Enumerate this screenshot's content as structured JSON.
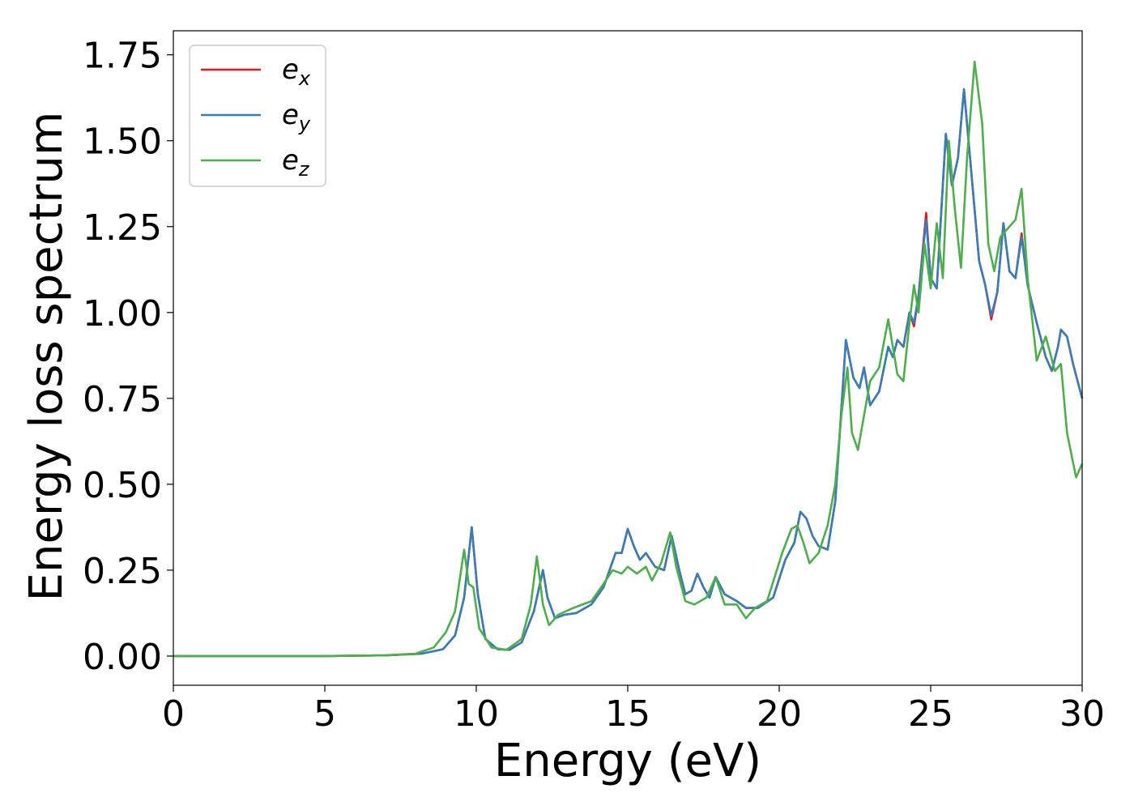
{
  "chart_data": {
    "type": "line",
    "title": "",
    "xlabel": "Energy (eV)",
    "ylabel": "Energy loss spectrum",
    "xlim": [
      0,
      30
    ],
    "ylim": [
      -0.085,
      1.82
    ],
    "xticks": [
      0,
      5,
      10,
      15,
      20,
      25,
      30
    ],
    "xtick_labels": [
      "0",
      "5",
      "10",
      "15",
      "20",
      "25",
      "30"
    ],
    "yticks": [
      0,
      0.25,
      0.5,
      0.75,
      1.0,
      1.25,
      1.5,
      1.75
    ],
    "ytick_labels": [
      "0.00",
      "0.25",
      "0.50",
      "0.75",
      "1.00",
      "1.25",
      "1.50",
      "1.75"
    ],
    "grid": false,
    "legend_position": "top-left",
    "series": [
      {
        "name": "e_x",
        "label_base": "e",
        "label_sub": "x",
        "color": "#e41a1c",
        "points": [
          [
            0,
            0
          ],
          [
            5,
            0
          ],
          [
            7,
            0.002
          ],
          [
            8.2,
            0.007
          ],
          [
            8.9,
            0.02
          ],
          [
            9.3,
            0.06
          ],
          [
            9.6,
            0.17
          ],
          [
            9.85,
            0.375
          ],
          [
            10.05,
            0.18
          ],
          [
            10.3,
            0.05
          ],
          [
            10.7,
            0.02
          ],
          [
            11.1,
            0.018
          ],
          [
            11.5,
            0.04
          ],
          [
            11.9,
            0.13
          ],
          [
            12.2,
            0.25
          ],
          [
            12.35,
            0.17
          ],
          [
            12.6,
            0.11
          ],
          [
            12.9,
            0.12
          ],
          [
            13.3,
            0.125
          ],
          [
            13.8,
            0.15
          ],
          [
            14.2,
            0.2
          ],
          [
            14.6,
            0.3
          ],
          [
            14.8,
            0.3
          ],
          [
            15.0,
            0.37
          ],
          [
            15.2,
            0.32
          ],
          [
            15.4,
            0.28
          ],
          [
            15.6,
            0.3
          ],
          [
            15.9,
            0.26
          ],
          [
            16.2,
            0.25
          ],
          [
            16.45,
            0.35
          ],
          [
            16.7,
            0.25
          ],
          [
            16.9,
            0.18
          ],
          [
            17.1,
            0.19
          ],
          [
            17.3,
            0.24
          ],
          [
            17.5,
            0.2
          ],
          [
            17.7,
            0.17
          ],
          [
            17.9,
            0.23
          ],
          [
            18.2,
            0.18
          ],
          [
            18.6,
            0.16
          ],
          [
            18.9,
            0.14
          ],
          [
            19.3,
            0.14
          ],
          [
            19.8,
            0.17
          ],
          [
            20.2,
            0.28
          ],
          [
            20.5,
            0.33
          ],
          [
            20.7,
            0.42
          ],
          [
            20.9,
            0.4
          ],
          [
            21.1,
            0.35
          ],
          [
            21.3,
            0.32
          ],
          [
            21.6,
            0.31
          ],
          [
            21.85,
            0.45
          ],
          [
            22.0,
            0.65
          ],
          [
            22.2,
            0.92
          ],
          [
            22.45,
            0.81
          ],
          [
            22.65,
            0.78
          ],
          [
            22.8,
            0.84
          ],
          [
            23.0,
            0.73
          ],
          [
            23.3,
            0.77
          ],
          [
            23.6,
            0.9
          ],
          [
            23.75,
            0.87
          ],
          [
            23.9,
            0.92
          ],
          [
            24.1,
            0.9
          ],
          [
            24.3,
            1.0
          ],
          [
            24.45,
            0.96
          ],
          [
            24.6,
            1.05
          ],
          [
            24.85,
            1.29
          ],
          [
            25.0,
            1.1
          ],
          [
            25.2,
            1.07
          ],
          [
            25.5,
            1.52
          ],
          [
            25.7,
            1.37
          ],
          [
            25.9,
            1.45
          ],
          [
            26.1,
            1.65
          ],
          [
            26.3,
            1.45
          ],
          [
            26.6,
            1.15
          ],
          [
            26.8,
            1.08
          ],
          [
            27.0,
            0.98
          ],
          [
            27.2,
            1.06
          ],
          [
            27.4,
            1.26
          ],
          [
            27.6,
            1.12
          ],
          [
            27.8,
            1.1
          ],
          [
            28.0,
            1.23
          ],
          [
            28.2,
            1.08
          ],
          [
            28.5,
            0.97
          ],
          [
            28.8,
            0.87
          ],
          [
            29.0,
            0.83
          ],
          [
            29.2,
            0.9
          ],
          [
            29.3,
            0.95
          ],
          [
            29.5,
            0.93
          ],
          [
            29.7,
            0.85
          ],
          [
            30.0,
            0.75
          ]
        ]
      },
      {
        "name": "e_y",
        "label_base": "e",
        "label_sub": "y",
        "color": "#377eb8",
        "points": [
          [
            0,
            0
          ],
          [
            5,
            0
          ],
          [
            7,
            0.002
          ],
          [
            8.2,
            0.007
          ],
          [
            8.9,
            0.02
          ],
          [
            9.3,
            0.06
          ],
          [
            9.6,
            0.17
          ],
          [
            9.85,
            0.375
          ],
          [
            10.05,
            0.18
          ],
          [
            10.3,
            0.05
          ],
          [
            10.7,
            0.02
          ],
          [
            11.1,
            0.018
          ],
          [
            11.5,
            0.04
          ],
          [
            11.9,
            0.13
          ],
          [
            12.2,
            0.25
          ],
          [
            12.35,
            0.17
          ],
          [
            12.6,
            0.11
          ],
          [
            12.9,
            0.12
          ],
          [
            13.3,
            0.125
          ],
          [
            13.8,
            0.15
          ],
          [
            14.2,
            0.2
          ],
          [
            14.6,
            0.3
          ],
          [
            14.8,
            0.3
          ],
          [
            15.0,
            0.37
          ],
          [
            15.2,
            0.32
          ],
          [
            15.4,
            0.28
          ],
          [
            15.6,
            0.3
          ],
          [
            15.9,
            0.26
          ],
          [
            16.2,
            0.25
          ],
          [
            16.45,
            0.35
          ],
          [
            16.7,
            0.25
          ],
          [
            16.9,
            0.18
          ],
          [
            17.1,
            0.19
          ],
          [
            17.3,
            0.24
          ],
          [
            17.5,
            0.2
          ],
          [
            17.7,
            0.17
          ],
          [
            17.9,
            0.23
          ],
          [
            18.2,
            0.18
          ],
          [
            18.6,
            0.16
          ],
          [
            18.9,
            0.14
          ],
          [
            19.3,
            0.14
          ],
          [
            19.8,
            0.17
          ],
          [
            20.2,
            0.28
          ],
          [
            20.5,
            0.33
          ],
          [
            20.7,
            0.42
          ],
          [
            20.9,
            0.4
          ],
          [
            21.1,
            0.35
          ],
          [
            21.3,
            0.32
          ],
          [
            21.6,
            0.31
          ],
          [
            21.85,
            0.45
          ],
          [
            22.0,
            0.65
          ],
          [
            22.2,
            0.92
          ],
          [
            22.45,
            0.81
          ],
          [
            22.65,
            0.78
          ],
          [
            22.8,
            0.84
          ],
          [
            23.0,
            0.73
          ],
          [
            23.3,
            0.77
          ],
          [
            23.6,
            0.9
          ],
          [
            23.75,
            0.87
          ],
          [
            23.9,
            0.92
          ],
          [
            24.1,
            0.9
          ],
          [
            24.3,
            1.0
          ],
          [
            24.45,
            0.97
          ],
          [
            24.6,
            1.05
          ],
          [
            24.85,
            1.27
          ],
          [
            25.0,
            1.1
          ],
          [
            25.2,
            1.07
          ],
          [
            25.5,
            1.52
          ],
          [
            25.7,
            1.37
          ],
          [
            25.9,
            1.45
          ],
          [
            26.1,
            1.65
          ],
          [
            26.3,
            1.45
          ],
          [
            26.6,
            1.15
          ],
          [
            26.8,
            1.08
          ],
          [
            27.0,
            0.99
          ],
          [
            27.2,
            1.06
          ],
          [
            27.4,
            1.26
          ],
          [
            27.6,
            1.12
          ],
          [
            27.8,
            1.1
          ],
          [
            28.0,
            1.22
          ],
          [
            28.2,
            1.08
          ],
          [
            28.5,
            0.97
          ],
          [
            28.8,
            0.87
          ],
          [
            29.0,
            0.83
          ],
          [
            29.2,
            0.9
          ],
          [
            29.3,
            0.95
          ],
          [
            29.5,
            0.93
          ],
          [
            29.7,
            0.85
          ],
          [
            30.0,
            0.75
          ]
        ]
      },
      {
        "name": "e_z",
        "label_base": "e",
        "label_sub": "z",
        "color": "#4daf4a",
        "points": [
          [
            0,
            0
          ],
          [
            5,
            0
          ],
          [
            7,
            0.002
          ],
          [
            8.0,
            0.007
          ],
          [
            8.6,
            0.025
          ],
          [
            9.0,
            0.07
          ],
          [
            9.3,
            0.13
          ],
          [
            9.6,
            0.31
          ],
          [
            9.75,
            0.21
          ],
          [
            9.9,
            0.2
          ],
          [
            10.1,
            0.08
          ],
          [
            10.5,
            0.025
          ],
          [
            11.0,
            0.018
          ],
          [
            11.5,
            0.05
          ],
          [
            11.8,
            0.15
          ],
          [
            12.0,
            0.29
          ],
          [
            12.2,
            0.15
          ],
          [
            12.4,
            0.09
          ],
          [
            12.7,
            0.12
          ],
          [
            13.2,
            0.14
          ],
          [
            13.8,
            0.16
          ],
          [
            14.2,
            0.21
          ],
          [
            14.5,
            0.25
          ],
          [
            14.8,
            0.24
          ],
          [
            15.0,
            0.26
          ],
          [
            15.3,
            0.24
          ],
          [
            15.6,
            0.26
          ],
          [
            15.8,
            0.22
          ],
          [
            16.1,
            0.27
          ],
          [
            16.4,
            0.36
          ],
          [
            16.6,
            0.26
          ],
          [
            16.9,
            0.16
          ],
          [
            17.2,
            0.15
          ],
          [
            17.6,
            0.17
          ],
          [
            17.9,
            0.23
          ],
          [
            18.2,
            0.15
          ],
          [
            18.6,
            0.15
          ],
          [
            18.9,
            0.11
          ],
          [
            19.2,
            0.14
          ],
          [
            19.6,
            0.16
          ],
          [
            20.1,
            0.3
          ],
          [
            20.4,
            0.37
          ],
          [
            20.6,
            0.38
          ],
          [
            20.8,
            0.33
          ],
          [
            21.0,
            0.27
          ],
          [
            21.3,
            0.3
          ],
          [
            21.6,
            0.38
          ],
          [
            21.85,
            0.5
          ],
          [
            22.05,
            0.7
          ],
          [
            22.25,
            0.84
          ],
          [
            22.4,
            0.65
          ],
          [
            22.6,
            0.6
          ],
          [
            22.8,
            0.7
          ],
          [
            23.0,
            0.8
          ],
          [
            23.3,
            0.84
          ],
          [
            23.6,
            0.98
          ],
          [
            23.9,
            0.82
          ],
          [
            24.1,
            0.8
          ],
          [
            24.3,
            0.97
          ],
          [
            24.45,
            1.08
          ],
          [
            24.6,
            1.0
          ],
          [
            24.8,
            1.2
          ],
          [
            25.0,
            1.07
          ],
          [
            25.2,
            1.26
          ],
          [
            25.4,
            1.1
          ],
          [
            25.6,
            1.5
          ],
          [
            25.8,
            1.3
          ],
          [
            26.0,
            1.13
          ],
          [
            26.2,
            1.45
          ],
          [
            26.45,
            1.73
          ],
          [
            26.7,
            1.55
          ],
          [
            26.9,
            1.2
          ],
          [
            27.1,
            1.12
          ],
          [
            27.3,
            1.22
          ],
          [
            27.6,
            1.25
          ],
          [
            27.8,
            1.27
          ],
          [
            28.0,
            1.36
          ],
          [
            28.2,
            1.1
          ],
          [
            28.5,
            0.86
          ],
          [
            28.8,
            0.93
          ],
          [
            29.1,
            0.83
          ],
          [
            29.3,
            0.85
          ],
          [
            29.5,
            0.65
          ],
          [
            29.8,
            0.52
          ],
          [
            30.0,
            0.56
          ]
        ]
      }
    ]
  }
}
